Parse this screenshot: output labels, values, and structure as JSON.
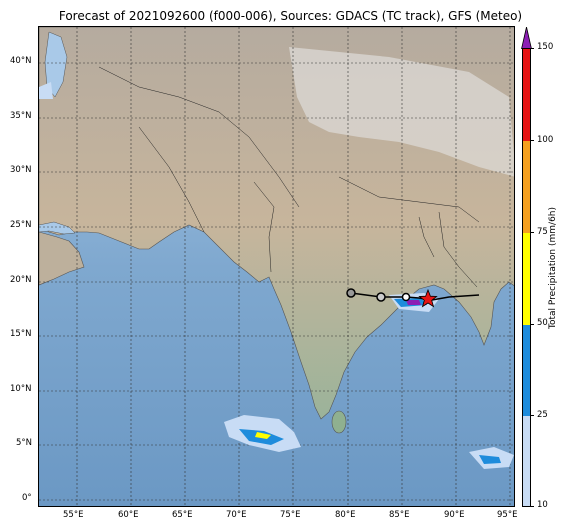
{
  "title": "Forecast of 2021092600 (f000-006), Sources: GDACS (TC track), GFS (Meteo)",
  "map": {
    "lon_range": [
      51.5,
      95.5
    ],
    "lat_range": [
      -0.5,
      43.5
    ],
    "lon_ticks": [
      "55°E",
      "60°E",
      "65°E",
      "70°E",
      "75°E",
      "80°E",
      "85°E",
      "90°E",
      "95°E"
    ],
    "lat_ticks": [
      "0°",
      "5°N",
      "10°N",
      "15°N",
      "20°N",
      "25°N",
      "30°N",
      "35°N",
      "40°N"
    ],
    "track": {
      "past_points": [
        [
          80.3,
          19.1
        ],
        [
          83.0,
          18.7
        ],
        [
          85.5,
          18.6
        ]
      ],
      "current_position": [
        87.4,
        18.4
      ],
      "forecast_line_end": [
        92.0,
        18.9
      ]
    }
  },
  "colorbar": {
    "label": "Total Precipitation (mm/6h)",
    "ticks": [
      "10",
      "25",
      "50",
      "75",
      "100",
      "150"
    ],
    "colors": [
      "#c8dcf5",
      "#1e8cdc",
      "#ffff00",
      "#f5a020",
      "#e61414",
      "#8c1eb4"
    ]
  }
}
